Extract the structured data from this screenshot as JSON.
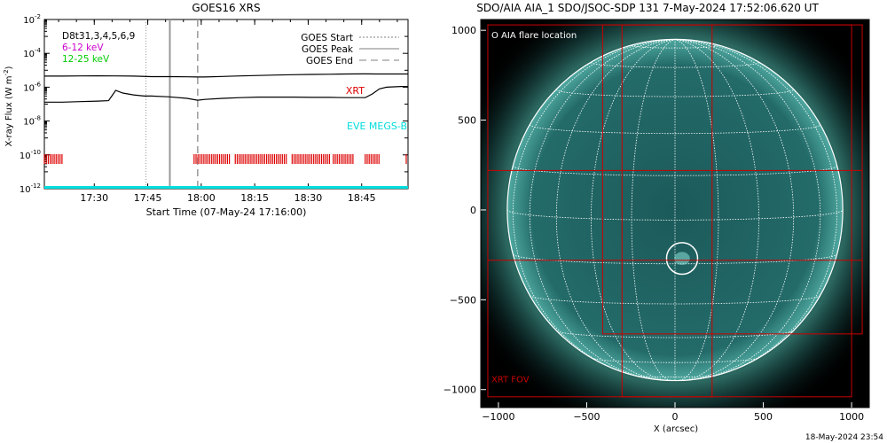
{
  "chart_data": [
    {
      "type": "line",
      "title": "GOES16 XRS",
      "xlabel": "Start Time (07-May-24 17:16:00)",
      "ylabel_main": "X-ray Flux (W m",
      "ylabel_sup": "-2",
      "ylabel_close": ")",
      "y_scale": "log",
      "ylim": [
        1e-12,
        0.01
      ],
      "xlim_minutes": [
        0,
        102
      ],
      "x_ticks": [
        {
          "label": "17:30",
          "minutes": 14
        },
        {
          "label": "17:45",
          "minutes": 29
        },
        {
          "label": "18:00",
          "minutes": 44
        },
        {
          "label": "18:15",
          "minutes": 59
        },
        {
          "label": "18:30",
          "minutes": 74
        },
        {
          "label": "18:45",
          "minutes": 89
        }
      ],
      "y_ticks": [
        {
          "base": "10",
          "exp": "-2",
          "value": 0.01
        },
        {
          "base": "10",
          "exp": "-4",
          "value": 0.0001
        },
        {
          "base": "10",
          "exp": "-6",
          "value": 1e-06
        },
        {
          "base": "10",
          "exp": "-8",
          "value": 1e-08
        },
        {
          "base": "10",
          "exp": "-10",
          "value": 1e-10
        },
        {
          "base": "10",
          "exp": "-12",
          "value": 1e-12
        }
      ],
      "channel_legend": [
        {
          "text": "D8t31,3,4,5,6,9",
          "color": "#000000"
        },
        {
          "text": "6-12 keV",
          "color": "#cc00cc"
        },
        {
          "text": "12-25 keV",
          "color": "#00cc00"
        }
      ],
      "marker_legend": [
        {
          "text": "GOES Start",
          "dash": "2,2",
          "color": "#999999"
        },
        {
          "text": "GOES Peak",
          "dash": "",
          "color": "#999999"
        },
        {
          "text": "GOES End",
          "dash": "8,5",
          "color": "#999999"
        }
      ],
      "markers_minutes": {
        "start": 28.5,
        "peak": 35.2,
        "end": 43.0
      },
      "series": [
        {
          "name": "",
          "color": "#000000",
          "x": [
            0,
            5,
            10,
            15,
            20,
            25,
            30,
            35,
            40,
            43,
            45,
            50,
            55,
            60,
            65,
            70,
            75,
            80,
            85,
            90,
            93,
            95,
            100,
            102
          ],
          "y": [
            4.5e-06,
            4.5e-06,
            4.6e-06,
            4.7e-06,
            4.6e-06,
            4.5e-06,
            4.2e-06,
            4.2e-06,
            4.1e-06,
            4e-06,
            4e-06,
            4.3e-06,
            4.6e-06,
            4.9e-06,
            5.2e-06,
            5.5e-06,
            5.7e-06,
            5.8e-06,
            6e-06,
            6.1e-06,
            6e-06,
            6e-06,
            6e-06,
            6e-06
          ]
        },
        {
          "name": "",
          "color": "#000000",
          "x": [
            0,
            5,
            10,
            15,
            18,
            19,
            20,
            22,
            25,
            28,
            30,
            35,
            40,
            43,
            45,
            50,
            55,
            60,
            65,
            70,
            75,
            80,
            85,
            90,
            92,
            94,
            96,
            100,
            102
          ],
          "y": [
            1.3e-07,
            1.3e-07,
            1.4e-07,
            1.5e-07,
            1.6e-07,
            3.2e-07,
            6.5e-07,
            4.5e-07,
            3.5e-07,
            3e-07,
            3e-07,
            2.7e-07,
            2.2e-07,
            1.7e-07,
            1.9e-07,
            2.2e-07,
            2.4e-07,
            2.6e-07,
            2.6e-07,
            2.6e-07,
            2.5e-07,
            2.5e-07,
            2.4e-07,
            2.4e-07,
            4e-07,
            8e-07,
            1e-06,
            1.1e-06,
            1.1e-06
          ]
        }
      ],
      "xrt_label": "XRT",
      "xrt_bar_color": "#dd0000",
      "xrt_segments_minutes": [
        [
          0,
          5
        ],
        [
          42,
          87
        ],
        [
          90,
          94
        ],
        [
          101.5,
          102
        ]
      ],
      "xrt_gaps_minutes": [
        [
          21,
          23
        ],
        [
          34,
          35
        ],
        [
          52,
          53
        ],
        [
          68,
          69
        ],
        [
          80,
          81
        ]
      ],
      "eve_label": "EVE MEGS-B",
      "eve_color": "#00dddd"
    },
    {
      "type": "scatter",
      "title": "SDO/AIA AIA_1 SDO/JSOC-SDP 131  7-May-2024 17:52:06.620 UT",
      "xlabel": "X (arcsec)",
      "ylabel": "",
      "xlim": [
        -1100,
        1100
      ],
      "ylim": [
        -1100,
        1060
      ],
      "x_ticks": [
        -1000,
        -500,
        0,
        500,
        1000
      ],
      "y_ticks": [
        -1000,
        -500,
        0,
        500,
        1000
      ],
      "solar_radius_arcsec": 950,
      "legend_text": "O AIA flare location",
      "flare_location_arcsec": {
        "x": 40,
        "y": -270,
        "radius": 80
      },
      "xrt_fov_label": "XRT FOV",
      "fov_color": "#cc0000",
      "grid_color": "#ffffff",
      "disk_color": "#1c5a5a",
      "timestamp": "18-May-2024 23:54"
    }
  ]
}
